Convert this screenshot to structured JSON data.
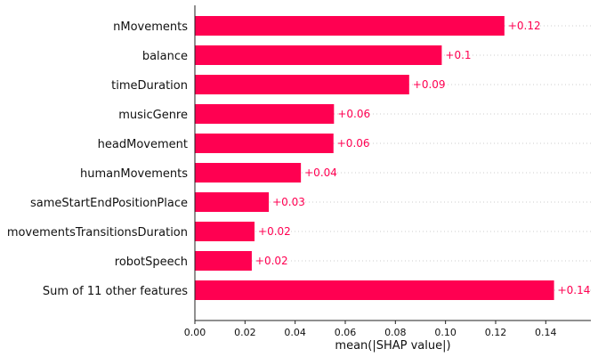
{
  "chart_data": {
    "type": "bar",
    "orientation": "horizontal",
    "title": "",
    "xlabel": "mean(|SHAP value|)",
    "ylabel": "",
    "xlim": [
      0,
      0.158
    ],
    "xticks": [
      0.0,
      0.02,
      0.04,
      0.06,
      0.08,
      0.1,
      0.12,
      0.14
    ],
    "xtick_labels": [
      "0.00",
      "0.02",
      "0.04",
      "0.06",
      "0.08",
      "0.10",
      "0.12",
      "0.14"
    ],
    "grid": "dotted horizontal per category",
    "bar_color": "#ff0051",
    "categories": [
      "nMovements",
      "balance",
      "timeDuration",
      "musicGenre",
      "headMovement",
      "humanMovements",
      "sameStartEndPositionPlace",
      "movementsTransitionsDuration",
      "robotSpeech",
      "Sum of 11 other features"
    ],
    "values": [
      0.1235,
      0.0985,
      0.0855,
      0.0555,
      0.0553,
      0.0423,
      0.0295,
      0.0238,
      0.0227,
      0.1433
    ],
    "value_labels": [
      "+0.12",
      "+0.1",
      "+0.09",
      "+0.06",
      "+0.06",
      "+0.04",
      "+0.03",
      "+0.02",
      "+0.02",
      "+0.14"
    ]
  }
}
